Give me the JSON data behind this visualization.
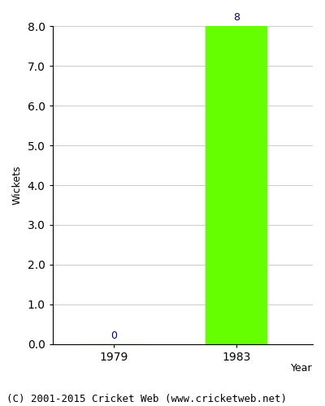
{
  "years": [
    1979,
    1983
  ],
  "values": [
    0,
    8
  ],
  "bar_color": "#66ff00",
  "bar_width": 2.0,
  "xlim": [
    1977,
    1985.5
  ],
  "ylim": [
    0,
    8.0
  ],
  "yticks": [
    0.0,
    1.0,
    2.0,
    3.0,
    4.0,
    5.0,
    6.0,
    7.0,
    8.0
  ],
  "ylabel": "Wickets",
  "xlabel": "Year",
  "annotation_color": "#000080",
  "annotation_fontsize": 9,
  "grid_color": "#cccccc",
  "grid_linewidth": 0.7,
  "caption": "(C) 2001-2015 Cricket Web (www.cricketweb.net)",
  "caption_fontsize": 9,
  "figsize": [
    4.0,
    5.0
  ],
  "dpi": 100
}
